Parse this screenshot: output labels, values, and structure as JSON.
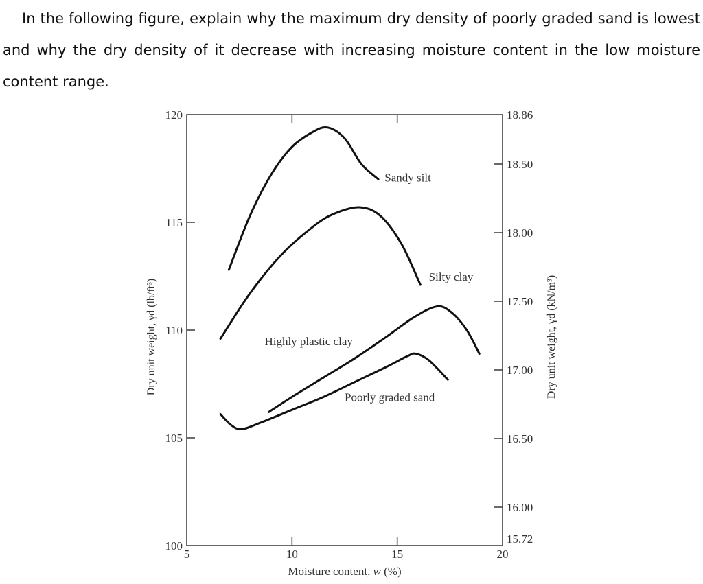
{
  "question": {
    "text": "In the following figure, explain why the maximum dry density of poorly graded sand is lowest and why the dry density of it decrease with increasing moisture content in the low moisture content range."
  },
  "chart_data": {
    "type": "line",
    "title": "",
    "xlabel": "Moisture content, w (%)",
    "ylabel": "Dry unit weight, γd (lb/ft³)",
    "ylabel_right": "Dry unit weight, γd (kN/m³)",
    "xlim": [
      5,
      20
    ],
    "ylim": [
      100,
      120
    ],
    "ylim_right": [
      15.72,
      18.86
    ],
    "x_ticks": [
      "5",
      "10",
      "15",
      "20"
    ],
    "y_ticks": [
      "100",
      "105",
      "110",
      "115",
      "120"
    ],
    "y_ticks_right": [
      "15.72",
      "16.00",
      "16.50",
      "17.00",
      "17.50",
      "18.00",
      "18.50",
      "18.86"
    ],
    "grid": false,
    "legend": "inline labels",
    "series": [
      {
        "name": "Sandy silt",
        "x": [
          7.0,
          8.0,
          9.0,
          10.0,
          11.0,
          11.7,
          12.5,
          13.3,
          14.1
        ],
        "y": [
          112.8,
          115.3,
          117.2,
          118.5,
          119.2,
          119.4,
          118.9,
          117.7,
          117.0
        ]
      },
      {
        "name": "Silty clay",
        "x": [
          6.6,
          8.0,
          9.5,
          11.0,
          12.0,
          13.2,
          14.2,
          15.2,
          16.1
        ],
        "y": [
          109.6,
          111.7,
          113.5,
          114.8,
          115.4,
          115.7,
          115.3,
          114.0,
          112.1
        ]
      },
      {
        "name": "Highly plastic clay",
        "x": [
          8.9,
          10.0,
          11.5,
          13.0,
          14.5,
          15.8,
          16.9,
          17.6,
          18.3,
          18.9
        ],
        "y": [
          106.2,
          106.9,
          107.8,
          108.7,
          109.7,
          110.6,
          111.1,
          110.8,
          110.0,
          108.9
        ]
      },
      {
        "name": "Poorly graded sand",
        "x": [
          6.6,
          7.1,
          7.6,
          8.5,
          10.0,
          11.5,
          13.0,
          14.5,
          15.5,
          15.9,
          16.5,
          17.4
        ],
        "y": [
          106.1,
          105.6,
          105.4,
          105.7,
          106.3,
          106.9,
          107.6,
          108.3,
          108.8,
          108.9,
          108.6,
          107.7
        ]
      }
    ],
    "annotations": [
      {
        "text": "Sandy silt",
        "x": 14.4,
        "y": 116.9
      },
      {
        "text": "Silty clay",
        "x": 16.5,
        "y": 112.3
      },
      {
        "text": "Highly plastic clay",
        "x": 8.7,
        "y": 109.3
      },
      {
        "text": "Poorly graded sand",
        "x": 12.5,
        "y": 106.7
      }
    ]
  }
}
